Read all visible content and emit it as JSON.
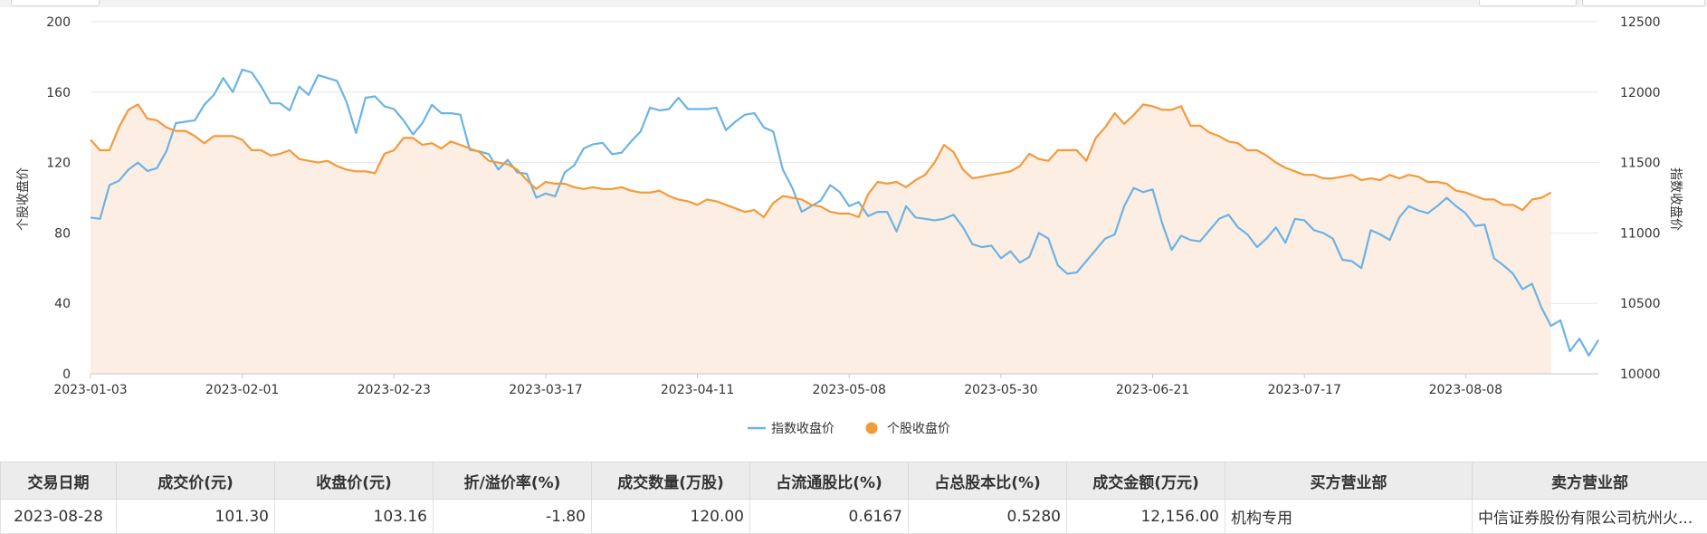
{
  "chart_data": {
    "type": "line",
    "x_ticks": [
      "2023-01-03",
      "2023-02-01",
      "2023-02-23",
      "2023-03-17",
      "2023-04-11",
      "2023-05-08",
      "2023-05-30",
      "2023-06-21",
      "2023-07-17",
      "2023-08-08"
    ],
    "y_left": {
      "label": "个股收盘价",
      "ticks": [
        "0",
        "40",
        "80",
        "120",
        "160",
        "200"
      ],
      "range": [
        0,
        200
      ]
    },
    "y_right": {
      "label": "指数收盘价",
      "ticks": [
        "10000",
        "10500",
        "11000",
        "11500",
        "12000",
        "12500"
      ],
      "range": [
        10000,
        12500
      ]
    },
    "grid": true,
    "legend": "bottom-center",
    "series": [
      {
        "name": "指数收盘价",
        "axis": "right",
        "color": "#6bb3e6",
        "values": [
          11110,
          11100,
          11340,
          11370,
          11450,
          11500,
          11440,
          11460,
          11580,
          11780,
          11790,
          11800,
          11910,
          11980,
          12100,
          12000,
          12160,
          12140,
          12040,
          11920,
          11920,
          11870,
          12040,
          11980,
          12120,
          12100,
          12080,
          11930,
          11710,
          11960,
          11970,
          11900,
          11880,
          11800,
          11700,
          11780,
          11910,
          11850,
          11850,
          11840,
          11590,
          11580,
          11560,
          11450,
          11520,
          11430,
          11420,
          11250,
          11280,
          11260,
          11430,
          11480,
          11600,
          11630,
          11640,
          11560,
          11570,
          11650,
          11720,
          11890,
          11870,
          11880,
          11960,
          11880,
          11880,
          11880,
          11890,
          11730,
          11790,
          11840,
          11850,
          11750,
          11720,
          11450,
          11320,
          11150,
          11190,
          11230,
          11340,
          11290,
          11190,
          11220,
          11120,
          11150,
          11150,
          11010,
          11190,
          11110,
          11100,
          11090,
          11100,
          11130,
          11040,
          10920,
          10900,
          10910,
          10820,
          10870,
          10790,
          10830,
          11000,
          10960,
          10770,
          10710,
          10720,
          10800,
          10880,
          10960,
          10990,
          11190,
          11320,
          11290,
          11310,
          11070,
          10880,
          10980,
          10950,
          10940,
          11020,
          11100,
          11130,
          11040,
          10990,
          10900,
          10960,
          11040,
          10930,
          11100,
          11090,
          11020,
          11000,
          10960,
          10810,
          10800,
          10750,
          11020,
          10990,
          10950,
          11110,
          11190,
          11160,
          11140,
          11190,
          11250,
          11190,
          11140,
          11050,
          11060,
          10820,
          10770,
          10710,
          10600,
          10640,
          10470,
          10340,
          10380,
          10160,
          10250,
          10130,
          10240
        ]
      },
      {
        "name": "个股收盘价",
        "axis": "left",
        "color": "#f39a3a",
        "values": [
          133,
          127,
          127,
          140,
          150,
          153,
          145,
          144,
          140,
          138,
          138,
          135,
          131,
          135,
          135,
          135,
          133,
          127,
          127,
          124,
          125,
          127,
          122,
          121,
          120,
          121,
          118,
          116,
          115,
          115,
          114,
          125,
          127,
          134,
          134,
          130,
          131,
          128,
          132,
          130,
          128,
          126,
          121,
          120,
          119,
          116,
          110,
          105,
          109,
          108,
          108,
          106,
          105,
          106,
          105,
          105,
          106,
          104,
          103,
          103,
          104,
          101,
          99,
          98,
          96,
          99,
          98,
          96,
          94,
          92,
          93,
          89,
          97,
          101,
          100,
          99,
          96,
          95,
          92,
          91,
          91,
          89,
          102,
          109,
          108,
          109,
          106,
          110,
          113,
          120,
          130,
          126,
          116,
          111,
          112,
          113,
          114,
          115,
          118,
          125,
          122,
          121,
          127,
          127,
          127,
          121,
          134,
          140,
          148,
          142,
          147,
          153,
          152,
          150,
          150,
          152,
          141,
          141,
          137,
          135,
          132,
          131,
          127,
          127,
          124,
          120,
          117,
          115,
          113,
          113,
          111,
          111,
          112,
          113,
          110,
          111,
          110,
          113,
          111,
          113,
          112,
          109,
          109,
          108,
          104,
          103,
          101,
          99,
          99,
          96,
          96,
          93,
          99,
          100,
          103
        ]
      }
    ]
  },
  "legend": {
    "items": [
      {
        "label": "指数收盘价",
        "icon": "line-marker-icon",
        "color": "#6bb3e6"
      },
      {
        "label": "个股收盘价",
        "icon": "circle-marker-icon",
        "color": "#f39a3a"
      }
    ]
  },
  "table": {
    "headers": [
      "交易日期",
      "成交价(元)",
      "收盘价(元)",
      "折/溢价率(%)",
      "成交数量(万股)",
      "占流通股比(%)",
      "占总股本比(%)",
      "成交金额(万元)",
      "买方营业部",
      "卖方营业部"
    ],
    "rows": [
      [
        "2023-08-28",
        "101.30",
        "103.16",
        "-1.80",
        "120.00",
        "0.6167",
        "0.5280",
        "12,156.00",
        "机构专用",
        "中信证券股份有限公司杭州火..."
      ]
    ]
  }
}
